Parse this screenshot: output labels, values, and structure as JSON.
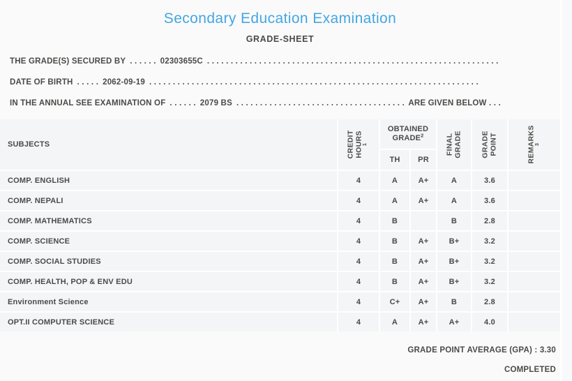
{
  "colors": {
    "accent_blue": "#44a6e2",
    "text": "#4a4a48",
    "cell_background": "#f4f5f6",
    "page_background": "#fafafa"
  },
  "header": {
    "title": "Secondary Education Examination",
    "subtitle": "GRADE-SHEET"
  },
  "student": {
    "lines": [
      {
        "label": "THE GRADE(S) SECURED BY",
        "gap_dots": ". . . . . .",
        "value": "02303655C",
        "fill_dots": ". . . . . . . . . . . . . . . . . . . . . . . . . . . . . . . . . . . . . . . . . . . . . . . . . . . . . . . . . . . . . . . . . . . . . .",
        "suffix": ""
      },
      {
        "label": "DATE OF BIRTH",
        "gap_dots": ". . . . .",
        "value": "2062-09-19",
        "fill_dots": ". . . . . . . . . . . . . . . . . . . . . . . . . . . . . . . . . . . . . . . . . . . . . . . . . . . . . . . . . . . . . . . . . . . . . .",
        "suffix": ""
      },
      {
        "label": "IN THE ANNUAL SEE EXAMINATION OF",
        "gap_dots": ". . . . . .",
        "value": "2079 BS",
        "fill_dots": ". . . . . . . . . . . . . . . . . . . . . . . . . . . . . . . . . . . . . . . . . . . . . . . . . . . . . . . . . . . . . . . . . . . . . .",
        "suffix": "ARE GIVEN BELOW . . ."
      }
    ]
  },
  "table": {
    "headers": {
      "subjects": "SUBJECTS",
      "credit_line1": "CREDIT",
      "credit_line2": "HOURS",
      "credit_sup": "1",
      "obtained_line1": "OBTAINED",
      "obtained_line2": "GRADE",
      "obtained_sup": "2",
      "th": "TH",
      "pr": "PR",
      "final_line1": "FINAL",
      "final_line2": "GRADE",
      "gp_line1": "GRADE",
      "gp_line2": "POINT",
      "remarks": "REMARKS",
      "remarks_sup": "3"
    },
    "rows": [
      {
        "subject": "COMP. ENGLISH",
        "credit": "4",
        "th": "A",
        "pr": "A+",
        "final": "A",
        "gp": "3.6",
        "remarks": ""
      },
      {
        "subject": "COMP. NEPALI",
        "credit": "4",
        "th": "A",
        "pr": "A+",
        "final": "A",
        "gp": "3.6",
        "remarks": ""
      },
      {
        "subject": "COMP. MATHEMATICS",
        "credit": "4",
        "th": "B",
        "pr": "",
        "final": "B",
        "gp": "2.8",
        "remarks": ""
      },
      {
        "subject": "COMP. SCIENCE",
        "credit": "4",
        "th": "B",
        "pr": "A+",
        "final": "B+",
        "gp": "3.2",
        "remarks": ""
      },
      {
        "subject": "COMP. SOCIAL STUDIES",
        "credit": "4",
        "th": "B",
        "pr": "A+",
        "final": "B+",
        "gp": "3.2",
        "remarks": ""
      },
      {
        "subject": "COMP. HEALTH, POP & ENV EDU",
        "credit": "4",
        "th": "B",
        "pr": "A+",
        "final": "B+",
        "gp": "3.2",
        "remarks": ""
      },
      {
        "subject": "Environment Science",
        "credit": "4",
        "th": "C+",
        "pr": "A+",
        "final": "B",
        "gp": "2.8",
        "remarks": ""
      },
      {
        "subject": "OPT.II COMPUTER SCIENCE",
        "credit": "4",
        "th": "A",
        "pr": "A+",
        "final": "A+",
        "gp": "4.0",
        "remarks": ""
      }
    ]
  },
  "footer": {
    "gpa_label": "GRADE POINT AVERAGE (GPA) :",
    "gpa_value": "3.30",
    "status": "COMPLETED"
  }
}
